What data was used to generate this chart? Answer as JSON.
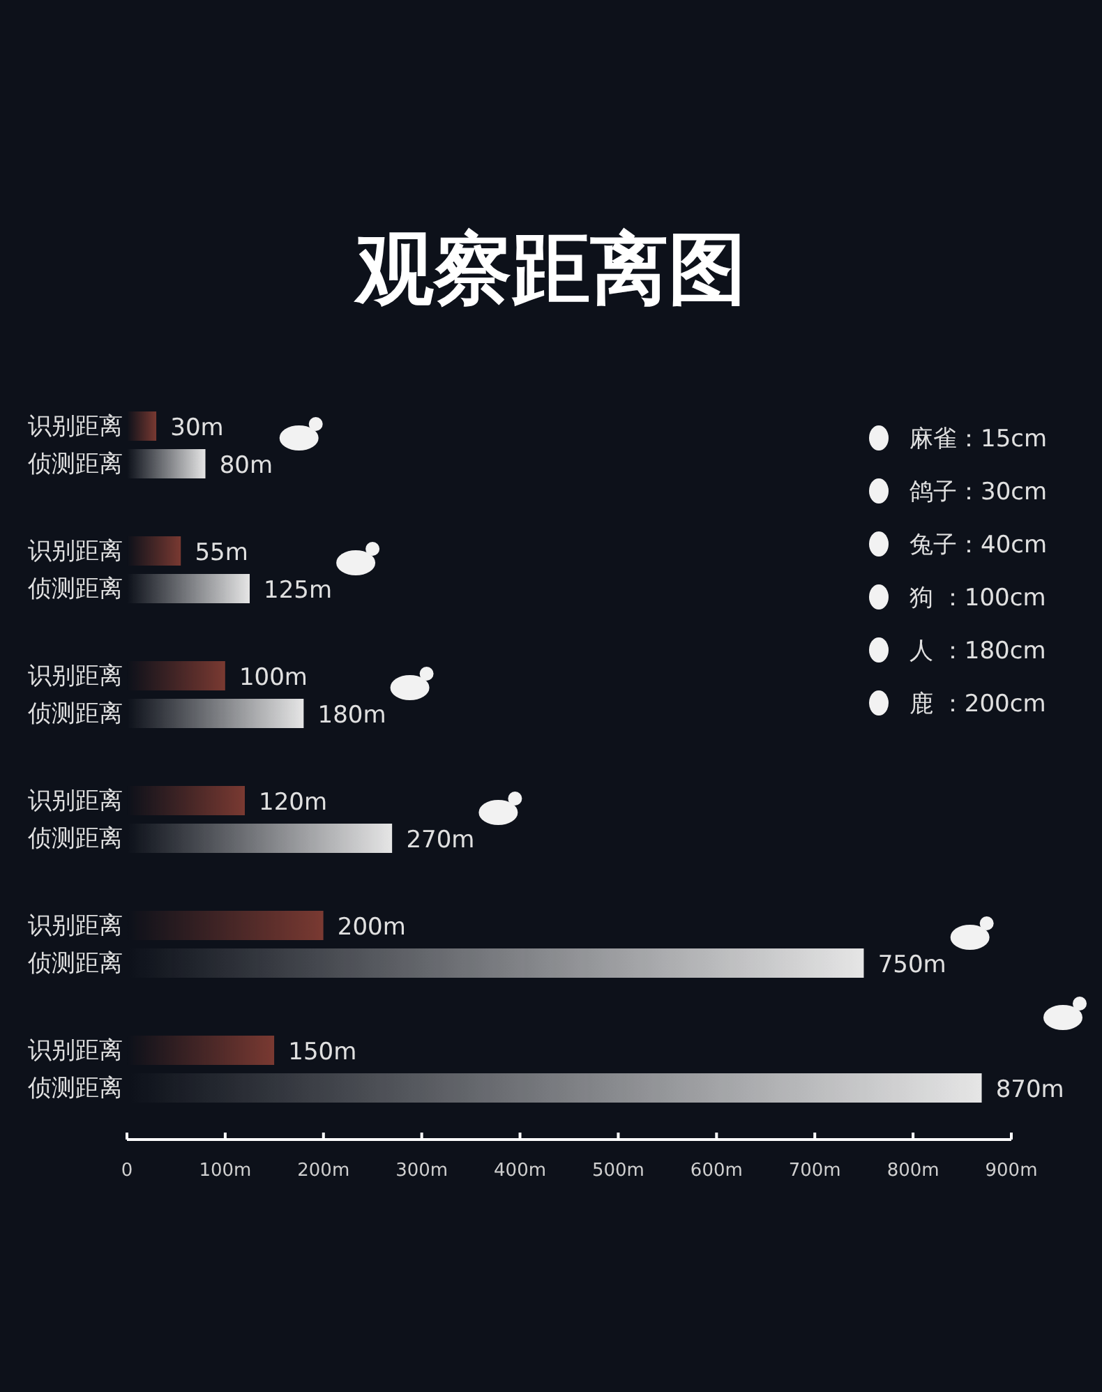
{
  "chart_data": {
    "type": "bar",
    "orientation": "horizontal",
    "title": "观察距离图",
    "categories": [
      null,
      null,
      null,
      null,
      null,
      null
    ],
    "series": [
      {
        "name": "识别距离",
        "color": "#7a3a32",
        "values": [
          30,
          55,
          100,
          120,
          200,
          150
        ],
        "value_labels": [
          "30m",
          "55m",
          "100m",
          "120m",
          "200m",
          "150m"
        ]
      },
      {
        "name": "侦测距离",
        "color": "#e6e6e6",
        "values": [
          80,
          125,
          180,
          270,
          750,
          870
        ],
        "value_labels": [
          "80m",
          "125m",
          "180m",
          "270m",
          "750m",
          "870m"
        ]
      }
    ],
    "xlim": [
      0,
      900
    ],
    "xticks": [
      {
        "value": 0,
        "label": "0"
      },
      {
        "value": 100,
        "label": "100m"
      },
      {
        "value": 200,
        "label": "200m"
      },
      {
        "value": 300,
        "label": "300m"
      },
      {
        "value": 400,
        "label": "400m"
      },
      {
        "value": 500,
        "label": "500m"
      },
      {
        "value": 600,
        "label": "600m"
      },
      {
        "value": 700,
        "label": "700m"
      },
      {
        "value": 800,
        "label": "800m"
      },
      {
        "value": 900,
        "label": "900m"
      }
    ],
    "annotations": [
      "麻雀：15cm",
      "鸽子：30cm",
      "兔子：40cm",
      "狗 ：100cm",
      "人 ：180cm",
      "鹿 ：200cm"
    ]
  }
}
